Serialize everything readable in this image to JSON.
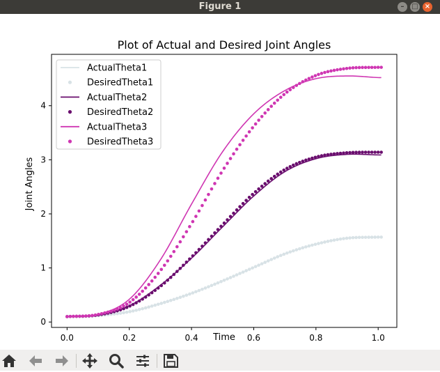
{
  "window": {
    "title": "Figure 1"
  },
  "toolbar": {
    "items": [
      "home-icon",
      "back-arrow-icon",
      "forward-arrow-icon",
      "pan-move-icon",
      "zoom-magnifier-icon",
      "configure-subplots-icon",
      "save-floppy-icon"
    ]
  },
  "colors": {
    "theta1": "#d8e2e6",
    "theta2": "#6a0e6e",
    "theta3": "#cf36b2",
    "titlebar": "#3c3b37",
    "toolbar": "#f0efee"
  },
  "chart_data": {
    "type": "line",
    "title": "Plot of Actual and Desired Joint Angles",
    "xlabel": "Time",
    "ylabel": "Joint Angles",
    "xlim": [
      -0.05,
      1.06
    ],
    "ylim": [
      -0.1,
      4.95
    ],
    "xticks": [
      "0.0",
      "0.2",
      "0.4",
      "0.6",
      "0.8",
      "1.0"
    ],
    "xtick_values": [
      0.0,
      0.2,
      0.4,
      0.6,
      0.8,
      1.0
    ],
    "yticks": [
      "0",
      "1",
      "2",
      "3",
      "4"
    ],
    "ytick_values": [
      0,
      1,
      2,
      3,
      4
    ],
    "grid": false,
    "legend_position": "upper-left",
    "x_range": [
      0,
      1.01
    ],
    "series": [
      {
        "name": "ActualTheta1",
        "style": "line",
        "color": "#d8e2e6",
        "x": [
          0.0,
          0.1,
          0.2,
          0.3,
          0.4,
          0.5,
          0.6,
          0.7,
          0.8,
          0.9,
          1.0,
          1.01
        ],
        "y": [
          0.1,
          0.12,
          0.19,
          0.34,
          0.53,
          0.76,
          1.01,
          1.26,
          1.44,
          1.55,
          1.57,
          1.57
        ]
      },
      {
        "name": "DesiredTheta1",
        "style": "dots",
        "color": "#d8e2e6",
        "x": [
          0.0,
          0.1,
          0.2,
          0.3,
          0.4,
          0.5,
          0.6,
          0.7,
          0.8,
          0.9,
          1.0,
          1.01
        ],
        "y": [
          0.1,
          0.12,
          0.19,
          0.34,
          0.53,
          0.76,
          1.01,
          1.26,
          1.44,
          1.55,
          1.57,
          1.57
        ]
      },
      {
        "name": "ActualTheta2",
        "style": "line",
        "color": "#6a0e6e",
        "x": [
          0.0,
          0.1,
          0.2,
          0.3,
          0.4,
          0.5,
          0.6,
          0.7,
          0.8,
          0.9,
          1.0,
          1.01
        ],
        "y": [
          0.1,
          0.13,
          0.3,
          0.68,
          1.18,
          1.76,
          2.33,
          2.78,
          3.02,
          3.1,
          3.09,
          3.09
        ]
      },
      {
        "name": "DesiredTheta2",
        "style": "dots",
        "color": "#6a0e6e",
        "x": [
          0.0,
          0.1,
          0.2,
          0.3,
          0.4,
          0.5,
          0.6,
          0.7,
          0.8,
          0.9,
          1.0,
          1.01
        ],
        "y": [
          0.1,
          0.13,
          0.29,
          0.66,
          1.2,
          1.8,
          2.38,
          2.82,
          3.05,
          3.13,
          3.14,
          3.14
        ]
      },
      {
        "name": "ActualTheta3",
        "style": "line",
        "color": "#cf36b2",
        "x": [
          0.0,
          0.1,
          0.2,
          0.3,
          0.4,
          0.5,
          0.6,
          0.7,
          0.8,
          0.9,
          1.0,
          1.01
        ],
        "y": [
          0.1,
          0.14,
          0.42,
          1.15,
          2.18,
          3.15,
          3.85,
          4.28,
          4.5,
          4.55,
          4.52,
          4.52
        ]
      },
      {
        "name": "DesiredTheta3",
        "style": "dots",
        "color": "#cf36b2",
        "x": [
          0.0,
          0.1,
          0.2,
          0.3,
          0.4,
          0.5,
          0.6,
          0.7,
          0.8,
          0.9,
          1.0,
          1.01
        ],
        "y": [
          0.1,
          0.14,
          0.36,
          0.95,
          1.82,
          2.8,
          3.62,
          4.22,
          4.56,
          4.69,
          4.71,
          4.71
        ]
      }
    ]
  }
}
